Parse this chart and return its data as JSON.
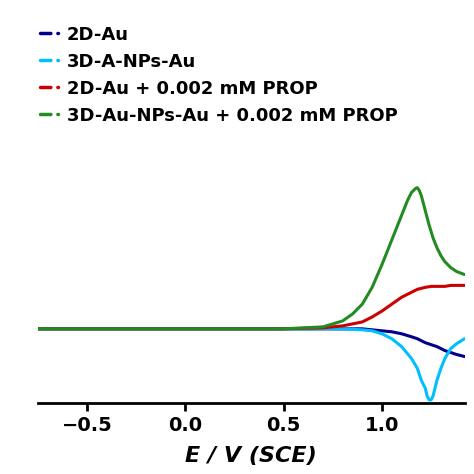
{
  "xlabel": "E / V (SCE)",
  "xlim": [
    -0.75,
    1.42
  ],
  "ylim": [
    -0.75,
    1.65
  ],
  "xticks": [
    -0.5,
    0.0,
    0.5,
    1.0
  ],
  "background_color": "#ffffff",
  "legend": [
    {
      "label": "2D-Au",
      "color": "#00008B"
    },
    {
      "label": "3D-A-NPs-Au",
      "color": "#00BFFF"
    },
    {
      "label": "2D-Au + 0.002 mM PROP",
      "color": "#CC0000"
    },
    {
      "label": "3D-Au-NPs-Au + 0.002 mM PROP",
      "color": "#228B22"
    }
  ],
  "curves": {
    "2D_Au": {
      "color": "#00008B",
      "x": [
        -0.75,
        -0.5,
        -0.25,
        0.0,
        0.25,
        0.5,
        0.7,
        0.8,
        0.9,
        0.95,
        1.0,
        1.05,
        1.1,
        1.15,
        1.18,
        1.2,
        1.22,
        1.25,
        1.28,
        1.3,
        1.32,
        1.35,
        1.38,
        1.42
      ],
      "y": [
        0.0,
        0.0,
        0.0,
        0.0,
        0.0,
        0.0,
        0.0,
        0.0,
        0.0,
        -0.01,
        -0.02,
        -0.03,
        -0.05,
        -0.08,
        -0.1,
        -0.12,
        -0.14,
        -0.16,
        -0.18,
        -0.2,
        -0.22,
        -0.24,
        -0.26,
        -0.28
      ]
    },
    "3D_A_NPs_Au": {
      "color": "#00BFFF",
      "x": [
        -0.75,
        -0.5,
        -0.25,
        0.0,
        0.25,
        0.5,
        0.7,
        0.8,
        0.9,
        0.95,
        1.0,
        1.05,
        1.1,
        1.15,
        1.18,
        1.2,
        1.22,
        1.23,
        1.24,
        1.25,
        1.26,
        1.27,
        1.28,
        1.3,
        1.32,
        1.35,
        1.38,
        1.42
      ],
      "y": [
        0.0,
        0.0,
        0.0,
        0.0,
        0.0,
        0.0,
        0.0,
        0.0,
        -0.01,
        -0.02,
        -0.05,
        -0.1,
        -0.18,
        -0.3,
        -0.4,
        -0.52,
        -0.6,
        -0.68,
        -0.72,
        -0.72,
        -0.68,
        -0.6,
        -0.52,
        -0.4,
        -0.3,
        -0.2,
        -0.15,
        -0.1
      ]
    },
    "2D_Au_PROP": {
      "color": "#CC0000",
      "x": [
        -0.75,
        -0.5,
        -0.25,
        0.0,
        0.25,
        0.5,
        0.7,
        0.8,
        0.9,
        0.95,
        1.0,
        1.05,
        1.1,
        1.15,
        1.18,
        1.2,
        1.22,
        1.25,
        1.28,
        1.3,
        1.32,
        1.35,
        1.38,
        1.42
      ],
      "y": [
        0.0,
        0.0,
        0.0,
        0.0,
        0.0,
        0.0,
        0.01,
        0.03,
        0.07,
        0.12,
        0.18,
        0.25,
        0.32,
        0.37,
        0.4,
        0.41,
        0.42,
        0.43,
        0.43,
        0.43,
        0.43,
        0.44,
        0.44,
        0.44
      ]
    },
    "3D_Au_NPs_Au_PROP": {
      "color": "#228B22",
      "x": [
        -0.75,
        -0.5,
        -0.25,
        0.0,
        0.25,
        0.5,
        0.7,
        0.8,
        0.85,
        0.9,
        0.95,
        1.0,
        1.05,
        1.1,
        1.13,
        1.15,
        1.17,
        1.18,
        1.19,
        1.2,
        1.22,
        1.24,
        1.26,
        1.28,
        1.3,
        1.32,
        1.35,
        1.38,
        1.42
      ],
      "y": [
        0.0,
        0.0,
        0.0,
        0.0,
        0.0,
        0.0,
        0.02,
        0.08,
        0.15,
        0.25,
        0.42,
        0.65,
        0.9,
        1.15,
        1.3,
        1.38,
        1.42,
        1.43,
        1.4,
        1.35,
        1.2,
        1.05,
        0.92,
        0.82,
        0.74,
        0.68,
        0.62,
        0.58,
        0.55
      ]
    }
  },
  "legend_fontsize": 13,
  "xlabel_fontsize": 16,
  "tick_fontsize": 14
}
